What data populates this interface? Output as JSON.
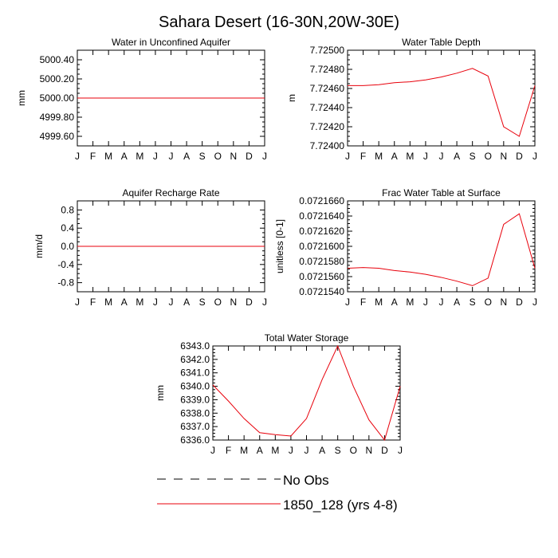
{
  "title": "Sahara Desert (16-30N,20W-30E)",
  "legend": {
    "entries": [
      {
        "label": "No Obs",
        "color": "#000000",
        "dashed": true
      },
      {
        "label": "1850_128 (yrs 4-8)",
        "color": "#e8000b",
        "dashed": false
      }
    ]
  },
  "chart_data": [
    {
      "type": "line",
      "title": "Water in Unconfined Aquifer",
      "ylabel": "mm",
      "categories": [
        "J",
        "F",
        "M",
        "A",
        "M",
        "J",
        "J",
        "A",
        "S",
        "O",
        "N",
        "D",
        "J"
      ],
      "ylim": [
        4999.5,
        5000.5
      ],
      "yticks": [
        4999.6,
        4999.8,
        5000.0,
        5000.2,
        5000.4
      ],
      "ytick_labels": [
        "4999.60",
        "4999.80",
        "5000.00",
        "5000.20",
        "5000.40"
      ],
      "series": [
        {
          "name": "1850_128 (yrs 4-8)",
          "color": "#e8000b",
          "values": [
            5000,
            5000,
            5000,
            5000,
            5000,
            5000,
            5000,
            5000,
            5000,
            5000,
            5000,
            5000,
            5000
          ]
        }
      ]
    },
    {
      "type": "line",
      "title": "Water Table Depth",
      "ylabel": "m",
      "categories": [
        "J",
        "F",
        "M",
        "A",
        "M",
        "J",
        "J",
        "A",
        "S",
        "O",
        "N",
        "D",
        "J"
      ],
      "ylim": [
        7.724,
        7.725
      ],
      "yticks": [
        7.724,
        7.7242,
        7.7244,
        7.7246,
        7.7248,
        7.725
      ],
      "ytick_labels": [
        "7.72400",
        "7.72420",
        "7.72440",
        "7.72460",
        "7.72480",
        "7.72500"
      ],
      "series": [
        {
          "name": "1850_128 (yrs 4-8)",
          "color": "#e8000b",
          "values": [
            7.72463,
            7.72463,
            7.72464,
            7.72466,
            7.72467,
            7.72469,
            7.72472,
            7.72476,
            7.72481,
            7.72473,
            7.7242,
            7.7241,
            7.72463
          ]
        }
      ]
    },
    {
      "type": "line",
      "title": "Aquifer Recharge Rate",
      "ylabel": "mm/d",
      "categories": [
        "J",
        "F",
        "M",
        "A",
        "M",
        "J",
        "J",
        "A",
        "S",
        "O",
        "N",
        "D",
        "J"
      ],
      "ylim": [
        -1.0,
        1.0
      ],
      "yticks": [
        -0.8,
        -0.4,
        0.0,
        0.4,
        0.8
      ],
      "ytick_labels": [
        "-0.8",
        "-0.4",
        "0.0",
        "0.4",
        "0.8"
      ],
      "series": [
        {
          "name": "1850_128 (yrs 4-8)",
          "color": "#e8000b",
          "values": [
            0,
            0,
            0,
            0,
            0,
            0,
            0,
            0,
            0,
            0,
            0,
            0,
            0
          ]
        }
      ]
    },
    {
      "type": "line",
      "title": "Frac Water Table at Surface",
      "ylabel": "unitless [0-1]",
      "categories": [
        "J",
        "F",
        "M",
        "A",
        "M",
        "J",
        "J",
        "A",
        "S",
        "O",
        "N",
        "D",
        "J"
      ],
      "ylim": [
        0.072154,
        0.072166
      ],
      "yticks": [
        0.072154,
        0.072156,
        0.072158,
        0.07216,
        0.072162,
        0.072164,
        0.072166
      ],
      "ytick_labels": [
        "0.0721540",
        "0.0721560",
        "0.0721580",
        "0.0721600",
        "0.0721620",
        "0.0721640",
        "0.0721660"
      ],
      "series": [
        {
          "name": "1850_128 (yrs 4-8)",
          "color": "#e8000b",
          "values": [
            0.0721571,
            0.0721572,
            0.0721571,
            0.0721568,
            0.0721566,
            0.0721563,
            0.0721559,
            0.0721554,
            0.0721548,
            0.0721558,
            0.0721629,
            0.0721643,
            0.0721571
          ]
        }
      ]
    },
    {
      "type": "line",
      "title": "Total Water Storage",
      "ylabel": "mm",
      "categories": [
        "J",
        "F",
        "M",
        "A",
        "M",
        "J",
        "J",
        "A",
        "S",
        "O",
        "N",
        "D",
        "J"
      ],
      "ylim": [
        6336.0,
        6343.0
      ],
      "yticks": [
        6336,
        6337,
        6338,
        6339,
        6340,
        6341,
        6342,
        6343
      ],
      "ytick_labels": [
        "6336.0",
        "6337.0",
        "6338.0",
        "6339.0",
        "6340.0",
        "6341.0",
        "6342.0",
        "6343.0"
      ],
      "series": [
        {
          "name": "1850_128 (yrs 4-8)",
          "color": "#e8000b",
          "values": [
            6340.1,
            6338.9,
            6337.6,
            6336.55,
            6336.4,
            6336.3,
            6337.6,
            6340.5,
            6343.0,
            6340.0,
            6337.5,
            6336.0,
            6340.0
          ]
        }
      ]
    }
  ]
}
